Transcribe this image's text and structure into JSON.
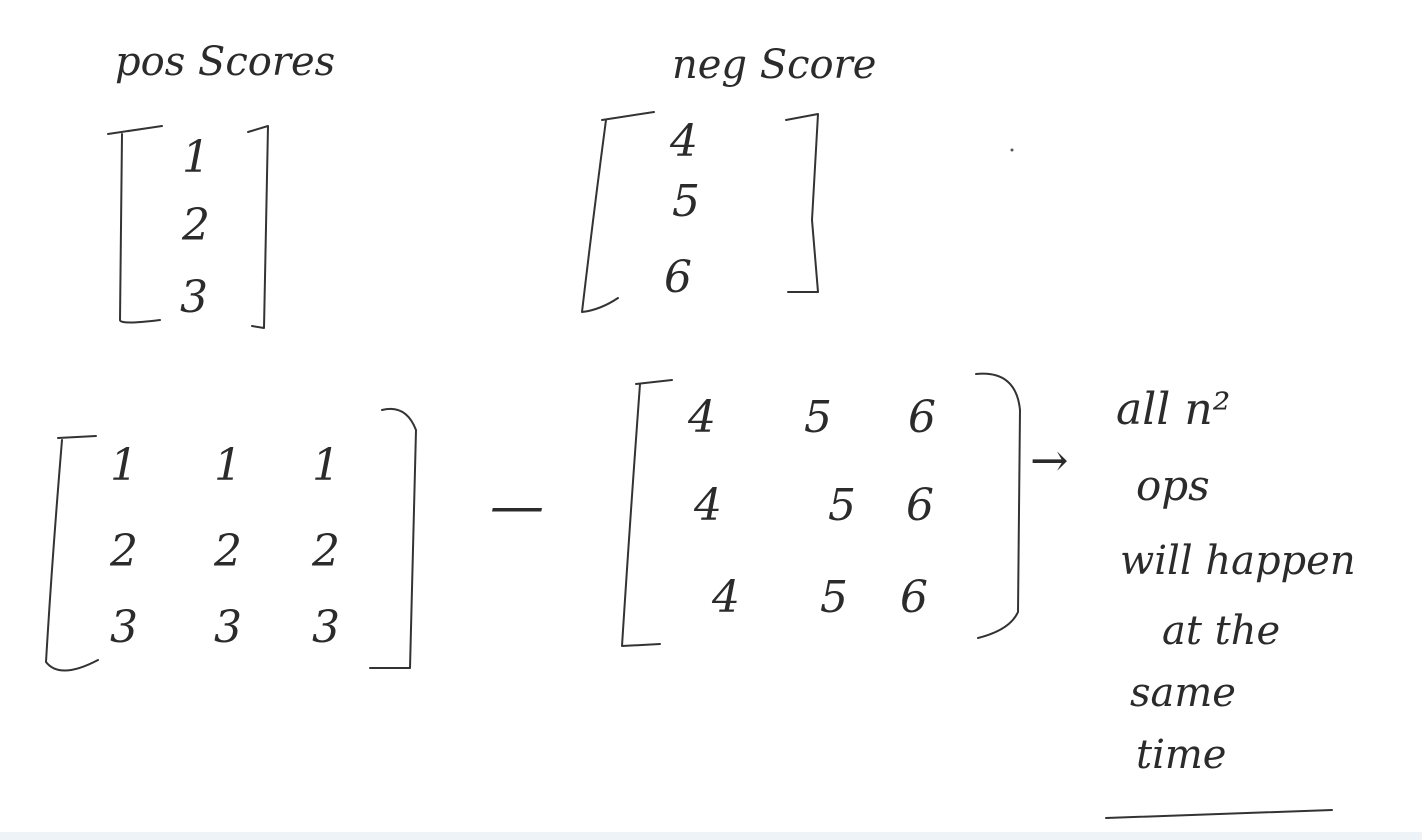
{
  "labels": {
    "pos_scores": "pos Scores",
    "neg_score": "neg Score"
  },
  "pos_vector": [
    "1",
    "2",
    "3"
  ],
  "neg_vector": [
    "4",
    "5",
    "6"
  ],
  "broadcast_pos": [
    [
      "1",
      "1",
      "1"
    ],
    [
      "2",
      "2",
      "2"
    ],
    [
      "3",
      "3",
      "3"
    ]
  ],
  "broadcast_neg": [
    [
      "4",
      "5",
      "6"
    ],
    [
      "4",
      "5",
      "6"
    ],
    [
      "4",
      "5",
      "6"
    ]
  ],
  "operator": "—",
  "arrow": "→",
  "note_lines": [
    "all n²",
    "ops",
    "will happen",
    "at the",
    "same",
    "time"
  ],
  "colors": {
    "ink": "#333333",
    "background": "#ffffff",
    "bottom_strip": "#eef3f8"
  }
}
